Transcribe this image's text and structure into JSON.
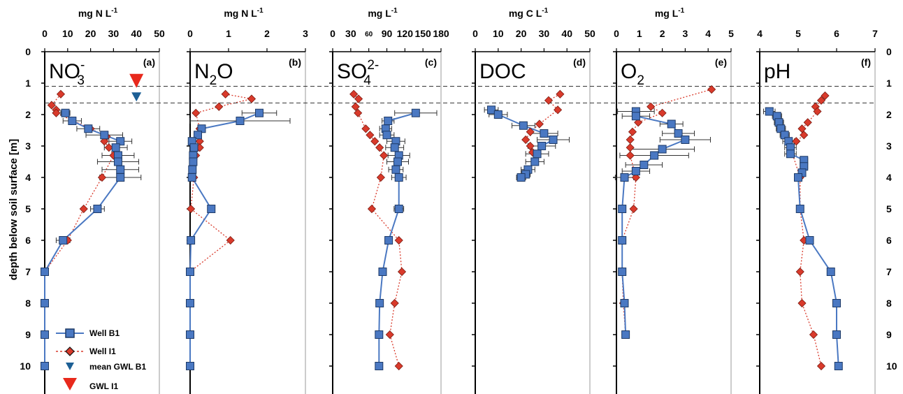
{
  "chart_data": {
    "type": "scatter",
    "ylabel": "depth below soil surface [m]",
    "ylim": [
      0,
      10.6
    ],
    "yticks": [
      "0",
      "1",
      "2",
      "3",
      "4",
      "5",
      "6",
      "7",
      "8",
      "9",
      "10"
    ],
    "gwl_lines_m": [
      1.1,
      1.63
    ],
    "legend": [
      {
        "key": "b1",
        "label": "Well B1",
        "color": "#4a78c2"
      },
      {
        "key": "i1",
        "label": "Well I1",
        "color": "#d93a2b"
      },
      {
        "key": "gwlb1",
        "label": "mean GWL B1",
        "color": "#1c5f95"
      },
      {
        "key": "gwli1",
        "label": "GWL I1",
        "color": "#e8291c"
      }
    ],
    "panels": [
      {
        "id": "a",
        "label": "(a)",
        "param_main": "NO",
        "param_sub": "3",
        "param_sup": "-",
        "unit_main": "mg N L",
        "unit_sup": "-1",
        "xlim": [
          0,
          50
        ],
        "xticks": [
          "0",
          "10",
          "20",
          "30",
          "40",
          "50"
        ],
        "gwl_markers": {
          "x": 40,
          "gwl_i1_depth": 0.95,
          "gwl_b1_depth": 1.45
        },
        "b1": {
          "y": [
            1.95,
            2.2,
            2.45,
            2.65,
            2.85,
            3.05,
            3.3,
            3.5,
            3.75,
            4.0,
            5.0,
            6.0,
            7.0,
            8.0,
            9.0,
            10.0
          ],
          "x": [
            9,
            12,
            19,
            26,
            33,
            31,
            32,
            32,
            33,
            33,
            23,
            8,
            0,
            0,
            0,
            0
          ],
          "err": [
            2,
            4,
            5,
            8,
            5,
            5,
            7,
            9,
            8,
            9,
            3,
            3,
            0,
            0,
            0,
            0
          ]
        },
        "i1": {
          "y": [
            1.35,
            1.7,
            1.85,
            1.95,
            2.45,
            2.7,
            2.85,
            3.05,
            3.3,
            4.0,
            5.0,
            6.0,
            7.0,
            8.0,
            9.0,
            10.0
          ],
          "x": [
            7,
            3,
            5,
            5,
            20,
            27,
            26,
            28,
            30,
            25,
            17,
            10,
            0,
            0,
            0,
            0
          ]
        }
      },
      {
        "id": "b",
        "label": "(b)",
        "param_main": "N",
        "param_sub": "2",
        "param_rest": "O",
        "unit_main": "mg N L",
        "unit_sup": "-1",
        "xlim": [
          0,
          3
        ],
        "xticks": [
          "0",
          "1",
          "2",
          "3"
        ],
        "b1": {
          "y": [
            1.95,
            2.2,
            2.45,
            2.65,
            2.85,
            3.05,
            3.3,
            3.5,
            3.75,
            4.0,
            5.0,
            6.0,
            7.0,
            8.0,
            9.0,
            10.0
          ],
          "x": [
            1.8,
            1.3,
            0.3,
            0.2,
            0.05,
            0.1,
            0.08,
            0.08,
            0.06,
            0.05,
            0.55,
            0.02,
            0.0,
            0.0,
            0.0,
            0.0
          ],
          "err": [
            0.45,
            1.3,
            0.1,
            0.08,
            0.05,
            0.05,
            0.05,
            0.05,
            0.05,
            0.05,
            0.08,
            0.02,
            0,
            0,
            0,
            0
          ]
        },
        "i1": {
          "y": [
            1.35,
            1.5,
            1.75,
            1.95,
            2.45,
            2.65,
            2.85,
            3.05,
            3.3,
            4.0,
            5.0,
            6.0,
            7.0,
            8.0,
            9.0,
            10.0
          ],
          "x": [
            0.92,
            1.6,
            0.75,
            0.15,
            0.25,
            0.2,
            0.25,
            0.25,
            0.15,
            0.1,
            0.02,
            1.05,
            0.0,
            0.0,
            0.0,
            0.0
          ]
        }
      },
      {
        "id": "c",
        "label": "(c)",
        "param_main": "SO",
        "param_sub": "4",
        "param_sup": "2-",
        "unit_main": "mg L",
        "unit_sup": "-1",
        "xlim": [
          0,
          180
        ],
        "xticks": [
          "0",
          "30",
          "60",
          "90",
          "120",
          "150",
          "180"
        ],
        "xtick_small": [
          false,
          false,
          true,
          false,
          false,
          false,
          false
        ],
        "b1": {
          "y": [
            1.95,
            2.2,
            2.45,
            2.65,
            2.85,
            3.05,
            3.3,
            3.5,
            3.75,
            4.0,
            5.0,
            6.0,
            7.0,
            8.0,
            9.0,
            10.0
          ],
          "x": [
            138,
            92,
            88,
            90,
            105,
            103,
            110,
            108,
            105,
            110,
            110,
            93,
            83,
            78,
            77,
            77
          ],
          "err": [
            35,
            10,
            10,
            12,
            15,
            15,
            18,
            18,
            12,
            12,
            8,
            6,
            0,
            0,
            0,
            5
          ]
        },
        "i1": {
          "y": [
            1.35,
            1.5,
            1.75,
            1.95,
            2.45,
            2.65,
            2.85,
            3.05,
            3.3,
            4.0,
            5.0,
            6.0,
            7.0,
            8.0,
            9.0,
            10.0
          ],
          "x": [
            35,
            43,
            38,
            42,
            55,
            62,
            70,
            78,
            85,
            80,
            65,
            110,
            115,
            103,
            95,
            110
          ]
        }
      },
      {
        "id": "d",
        "label": "(d)",
        "param_main": "DOC",
        "unit_main": "mg C L",
        "unit_sup": "-1",
        "xlim": [
          0,
          50
        ],
        "xticks": [
          "0",
          "10",
          "20",
          "30",
          "40",
          "50"
        ],
        "b1": {
          "y": [
            1.85,
            2.0,
            2.35,
            2.6,
            2.8,
            3.0,
            3.25,
            3.5,
            3.75,
            3.9,
            4.0
          ],
          "x": [
            7,
            10,
            21,
            30,
            34,
            29,
            27,
            26,
            23,
            22,
            20
          ],
          "err": [
            3,
            4,
            5,
            6,
            7,
            6,
            5,
            4,
            3,
            2,
            2
          ]
        },
        "i1": {
          "y": [
            1.35,
            1.55,
            1.85,
            2.3,
            2.55,
            2.8,
            3.0,
            3.2
          ],
          "x": [
            37,
            32,
            36,
            28,
            24,
            22,
            24,
            25
          ]
        }
      },
      {
        "id": "e",
        "label": "(e)",
        "param_main": "O",
        "param_sub": "2",
        "unit_main": "mg L",
        "unit_sup": "-1",
        "xlim": [
          0,
          5
        ],
        "xticks": [
          "0",
          "1",
          "2",
          "3",
          "4",
          "5"
        ],
        "b1": {
          "y": [
            1.9,
            2.05,
            2.3,
            2.6,
            2.8,
            3.1,
            3.3,
            3.6,
            3.8,
            4.0,
            5.0,
            6.0,
            7.0,
            8.0,
            9.0
          ],
          "x": [
            0.85,
            0.85,
            2.4,
            2.7,
            3.0,
            2.0,
            1.65,
            1.2,
            0.85,
            0.35,
            0.25,
            0.25,
            0.25,
            0.35,
            0.4
          ],
          "err": [
            0.8,
            0.6,
            0.5,
            0.7,
            1.1,
            1.4,
            1.5,
            0.8,
            0.6,
            0.4,
            0.1,
            0.05,
            0.05,
            0.05,
            0.05
          ]
        },
        "i1": {
          "y": [
            1.2,
            1.75,
            1.95,
            2.25,
            2.55,
            2.8,
            3.05,
            3.3,
            4.0,
            5.0,
            6.0,
            7.0,
            8.0,
            9.0
          ],
          "x": [
            4.15,
            1.5,
            2.0,
            0.95,
            0.7,
            0.6,
            0.6,
            0.6,
            0.85,
            0.75,
            0.25,
            0.25,
            0.3,
            0.4
          ]
        }
      },
      {
        "id": "f",
        "label": "(f)",
        "param_main": "pH",
        "unit_main": "",
        "unit_sup": "",
        "xlim": [
          4,
          7
        ],
        "xticks": [
          "4",
          "5",
          "6",
          "7"
        ],
        "b1": {
          "y": [
            1.9,
            2.05,
            2.25,
            2.45,
            2.65,
            2.85,
            3.05,
            3.25,
            3.45,
            3.65,
            3.85,
            4.0,
            5.0,
            6.0,
            7.0,
            8.0,
            9.0,
            10.0
          ],
          "x": [
            4.25,
            4.45,
            4.5,
            4.55,
            4.65,
            4.75,
            4.8,
            4.8,
            5.15,
            5.15,
            5.1,
            5.0,
            5.05,
            5.3,
            5.85,
            6.0,
            6.0,
            6.05
          ],
          "err": [
            0.15,
            0.12,
            0.12,
            0.12,
            0.12,
            0.15,
            0.15,
            0.15,
            0.1,
            0.1,
            0.1,
            0.08,
            0.05,
            0.05,
            0,
            0,
            0,
            0
          ]
        },
        "i1": {
          "y": [
            1.4,
            1.55,
            1.75,
            1.9,
            2.25,
            2.45,
            2.65,
            2.85,
            3.05,
            4.0,
            5.0,
            6.0,
            7.0,
            8.0,
            9.0,
            10.0
          ],
          "x": [
            5.7,
            5.6,
            5.45,
            5.5,
            5.25,
            5.1,
            5.15,
            4.95,
            4.8,
            5.05,
            5.05,
            5.15,
            5.05,
            5.1,
            5.4,
            5.6
          ]
        }
      }
    ]
  }
}
